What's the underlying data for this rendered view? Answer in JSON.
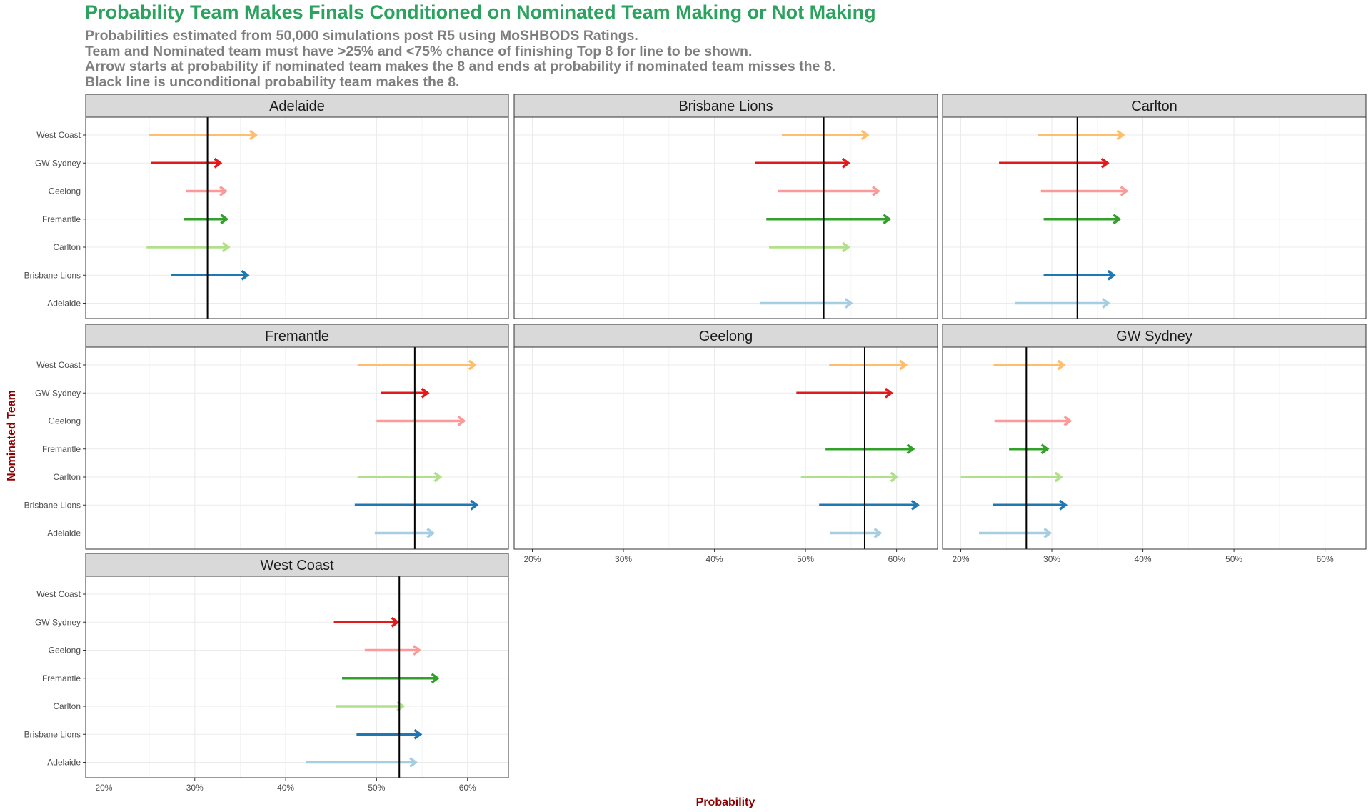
{
  "title": "Probability Team Makes Finals Conditioned on Nominated Team Making or Not Making",
  "subtitle": [
    "Probabilities estimated from 50,000 simulations post R5 using MoSHBODS Ratings.",
    "Team and Nominated team must have >25% and <75% chance of finishing Top 8 for line to be shown.",
    "Arrow starts at probability if nominated team makes the 8 and ends at probability if nominated team misses the 8.",
    "Black line is unconditional probability team makes the 8."
  ],
  "chart_data": {
    "type": "arrow-facets",
    "xlabel": "Probability",
    "ylabel": "Nominated Team",
    "xlim": [
      0.18,
      0.645
    ],
    "x_ticks": [
      0.2,
      0.3,
      0.4,
      0.5,
      0.6
    ],
    "x_tick_labels": [
      "20%",
      "30%",
      "40%",
      "50%",
      "60%"
    ],
    "grid": true,
    "nominated_teams": [
      "West Coast",
      "GW Sydney",
      "Geelong",
      "Fremantle",
      "Carlton",
      "Brisbane Lions",
      "Adelaide"
    ],
    "colors": {
      "West Coast": "#fdbf6f",
      "GW Sydney": "#e31a1c",
      "Geelong": "#fb9a99",
      "Fremantle": "#33a02c",
      "Carlton": "#b2df8a",
      "Brisbane Lions": "#1f78b4",
      "Adelaide": "#a6cee3"
    },
    "facets": [
      {
        "team": "Adelaide",
        "unconditional": 0.314,
        "arrows": [
          {
            "nominated": "West Coast",
            "start": 0.25,
            "end": 0.367
          },
          {
            "nominated": "GW Sydney",
            "start": 0.252,
            "end": 0.328
          },
          {
            "nominated": "Geelong",
            "start": 0.29,
            "end": 0.334
          },
          {
            "nominated": "Fremantle",
            "start": 0.288,
            "end": 0.335
          },
          {
            "nominated": "Carlton",
            "start": 0.247,
            "end": 0.337
          },
          {
            "nominated": "Brisbane Lions",
            "start": 0.274,
            "end": 0.358
          }
        ]
      },
      {
        "team": "Brisbane Lions",
        "unconditional": 0.52,
        "arrows": [
          {
            "nominated": "West Coast",
            "start": 0.474,
            "end": 0.568
          },
          {
            "nominated": "GW Sydney",
            "start": 0.445,
            "end": 0.547
          },
          {
            "nominated": "Geelong",
            "start": 0.47,
            "end": 0.58
          },
          {
            "nominated": "Fremantle",
            "start": 0.457,
            "end": 0.592
          },
          {
            "nominated": "Carlton",
            "start": 0.46,
            "end": 0.547
          },
          {
            "nominated": "Adelaide",
            "start": 0.45,
            "end": 0.55
          }
        ]
      },
      {
        "team": "Carlton",
        "unconditional": 0.328,
        "arrows": [
          {
            "nominated": "West Coast",
            "start": 0.285,
            "end": 0.378
          },
          {
            "nominated": "GW Sydney",
            "start": 0.242,
            "end": 0.361
          },
          {
            "nominated": "Geelong",
            "start": 0.288,
            "end": 0.382
          },
          {
            "nominated": "Fremantle",
            "start": 0.291,
            "end": 0.374
          },
          {
            "nominated": "Brisbane Lions",
            "start": 0.291,
            "end": 0.368
          },
          {
            "nominated": "Adelaide",
            "start": 0.26,
            "end": 0.362
          }
        ]
      },
      {
        "team": "Fremantle",
        "unconditional": 0.542,
        "arrows": [
          {
            "nominated": "West Coast",
            "start": 0.479,
            "end": 0.608
          },
          {
            "nominated": "GW Sydney",
            "start": 0.505,
            "end": 0.556
          },
          {
            "nominated": "Geelong",
            "start": 0.5,
            "end": 0.596
          },
          {
            "nominated": "Carlton",
            "start": 0.479,
            "end": 0.57
          },
          {
            "nominated": "Brisbane Lions",
            "start": 0.476,
            "end": 0.61
          },
          {
            "nominated": "Adelaide",
            "start": 0.498,
            "end": 0.562
          }
        ]
      },
      {
        "team": "Geelong",
        "unconditional": 0.565,
        "arrows": [
          {
            "nominated": "West Coast",
            "start": 0.526,
            "end": 0.61
          },
          {
            "nominated": "GW Sydney",
            "start": 0.49,
            "end": 0.594
          },
          {
            "nominated": "Fremantle",
            "start": 0.522,
            "end": 0.618
          },
          {
            "nominated": "Carlton",
            "start": 0.495,
            "end": 0.6
          },
          {
            "nominated": "Brisbane Lions",
            "start": 0.515,
            "end": 0.623
          },
          {
            "nominated": "Adelaide",
            "start": 0.527,
            "end": 0.582
          }
        ]
      },
      {
        "team": "GW Sydney",
        "unconditional": 0.272,
        "arrows": [
          {
            "nominated": "West Coast",
            "start": 0.236,
            "end": 0.313
          },
          {
            "nominated": "Geelong",
            "start": 0.237,
            "end": 0.32
          },
          {
            "nominated": "Fremantle",
            "start": 0.253,
            "end": 0.295
          },
          {
            "nominated": "Carlton",
            "start": 0.2,
            "end": 0.31
          },
          {
            "nominated": "Brisbane Lions",
            "start": 0.235,
            "end": 0.315
          },
          {
            "nominated": "Adelaide",
            "start": 0.22,
            "end": 0.298
          }
        ]
      },
      {
        "team": "West Coast",
        "unconditional": 0.525,
        "arrows": [
          {
            "nominated": "GW Sydney",
            "start": 0.453,
            "end": 0.523
          },
          {
            "nominated": "Geelong",
            "start": 0.487,
            "end": 0.547
          },
          {
            "nominated": "Fremantle",
            "start": 0.462,
            "end": 0.567
          },
          {
            "nominated": "Carlton",
            "start": 0.455,
            "end": 0.529
          },
          {
            "nominated": "Brisbane Lions",
            "start": 0.478,
            "end": 0.548
          },
          {
            "nominated": "Adelaide",
            "start": 0.422,
            "end": 0.543
          }
        ]
      }
    ]
  }
}
